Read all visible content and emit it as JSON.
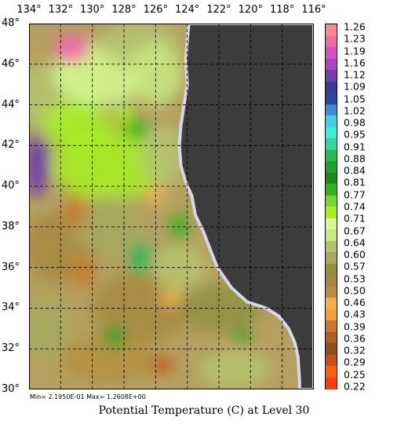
{
  "map": {
    "lon_labels": [
      "134°",
      "132°",
      "130°",
      "128°",
      "126°",
      "124°",
      "122°",
      "120°",
      "118°",
      "116°"
    ],
    "lat_labels": [
      "48°",
      "46°",
      "44°",
      "42°",
      "40°",
      "38°",
      "36°",
      "34°",
      "32°",
      "30°"
    ],
    "min_max_text": "Min= 2.1950E-01   Max= 1.2608E+00",
    "title": "Potential Temperature (C) at Level 30",
    "land_color": "#3c3c3c",
    "coast_fringe_color": "#d7d7ea"
  },
  "colorbar": {
    "labels": [
      "1.26",
      "1.23",
      "1.19",
      "1.16",
      "1.12",
      "1.09",
      "1.05",
      "1.02",
      "0.98",
      "0.95",
      "0.91",
      "0.88",
      "0.84",
      "0.81",
      "0.77",
      "0.74",
      "0.71",
      "0.67",
      "0.64",
      "0.60",
      "0.57",
      "0.53",
      "0.50",
      "0.46",
      "0.43",
      "0.39",
      "0.36",
      "0.32",
      "0.29",
      "0.25",
      "0.22"
    ],
    "colors": [
      "#ff8a8a",
      "#f06aa8",
      "#d054c4",
      "#a848c0",
      "#7040a8",
      "#383c98",
      "#2848a8",
      "#3c8ed2",
      "#40d0e0",
      "#38f0d8",
      "#30d8a0",
      "#28b858",
      "#20a028",
      "#1a8a1a",
      "#30b418",
      "#78d828",
      "#a8f020",
      "#d4fa90",
      "#c8e880",
      "#b4c46c",
      "#a8a860",
      "#909040",
      "#a88840",
      "#b49040",
      "#f0b04c",
      "#f0a038",
      "#c87a2c",
      "#a8641e",
      "#8c5018",
      "#c85018",
      "#ff6010",
      "#ff3c0c"
    ]
  },
  "chart_data": {
    "type": "heatmap",
    "title": "Potential Temperature (C) at Level 30",
    "x_label": "",
    "y_label": "",
    "xlim": [
      134,
      116
    ],
    "ylim": [
      30,
      48
    ],
    "color_scale": {
      "min": 0.22,
      "max": 1.26,
      "levels": [
        1.26,
        1.23,
        1.19,
        1.16,
        1.12,
        1.09,
        1.05,
        1.02,
        0.98,
        0.95,
        0.91,
        0.88,
        0.84,
        0.81,
        0.77,
        0.74,
        0.71,
        0.67,
        0.64,
        0.6,
        0.57,
        0.53,
        0.5,
        0.46,
        0.43,
        0.39,
        0.36,
        0.32,
        0.29,
        0.25,
        0.22
      ]
    },
    "data_min": 0.2195,
    "data_max": 1.2608,
    "features": [
      {
        "lon": 131.3,
        "lat": 46.8,
        "value": 1.22
      },
      {
        "lon": 133.5,
        "lat": 41.0,
        "value": 1.12
      },
      {
        "lon": 127.0,
        "lat": 36.5,
        "value": 0.88
      },
      {
        "lon": 125.6,
        "lat": 31.2,
        "value": 0.25
      },
      {
        "lon": 131.0,
        "lat": 38.8,
        "value": 0.36
      },
      {
        "lon": 130.5,
        "lat": 35.8,
        "value": 0.36
      },
      {
        "lon": 128.6,
        "lat": 32.6,
        "value": 0.85
      },
      {
        "lon": 127.2,
        "lat": 42.8,
        "value": 0.77
      },
      {
        "lon": 120.5,
        "lat": 32.7,
        "value": 0.84
      },
      {
        "lon": 125.0,
        "lat": 34.5,
        "value": 0.43
      },
      {
        "lon": 124.5,
        "lat": 38.0,
        "value": 0.77
      },
      {
        "lon": 128.0,
        "lat": 43.5,
        "value": 0.71
      },
      {
        "lon": 126.0,
        "lat": 39.5,
        "value": 0.43
      }
    ]
  }
}
